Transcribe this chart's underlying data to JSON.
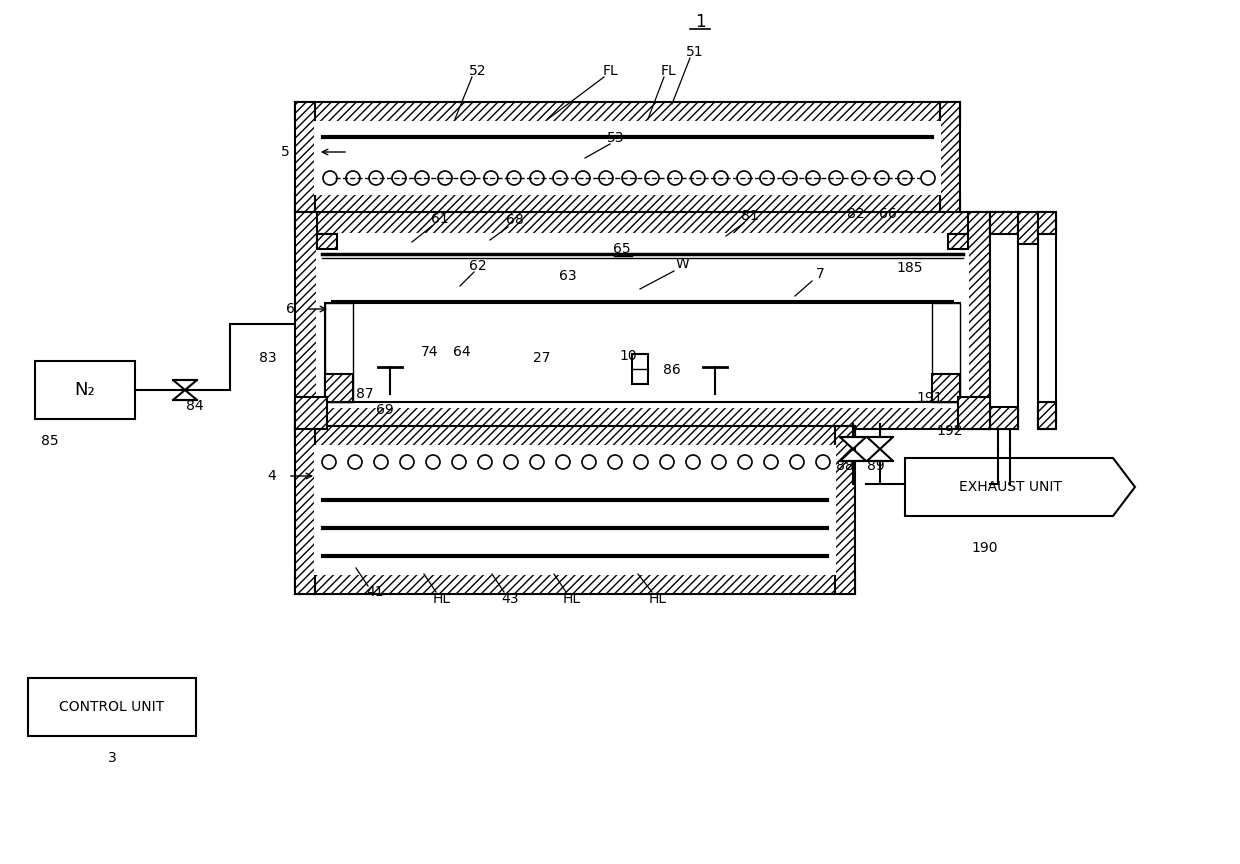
{
  "bg_color": "#ffffff",
  "line_color": "#000000",
  "labels": {
    "title": "1",
    "n2_box": "N₂",
    "control_unit": "CONTROL UNIT",
    "exhaust_unit": "EXHAUST UNIT",
    "ref_5": "5",
    "ref_4": "4",
    "ref_6": "6",
    "ref_3": "3",
    "ref_51": "51",
    "ref_52": "52",
    "ref_53": "53",
    "ref_FL1": "FL",
    "ref_FL2": "FL",
    "ref_61": "61",
    "ref_62": "62",
    "ref_63": "63",
    "ref_65": "65",
    "ref_W": "W",
    "ref_68": "68",
    "ref_81": "81",
    "ref_82": "82",
    "ref_66": "66",
    "ref_185": "185",
    "ref_7": "7",
    "ref_64": "64",
    "ref_74": "74",
    "ref_69": "69",
    "ref_27": "27",
    "ref_10": "10",
    "ref_86": "86",
    "ref_87": "87",
    "ref_83": "83",
    "ref_84": "84",
    "ref_85": "85",
    "ref_41": "41",
    "ref_43": "43",
    "ref_HL1": "HL",
    "ref_HL2": "HL",
    "ref_HL3": "HL",
    "ref_88": "88",
    "ref_89": "89",
    "ref_191": "191",
    "ref_192": "192",
    "ref_190": "190"
  }
}
